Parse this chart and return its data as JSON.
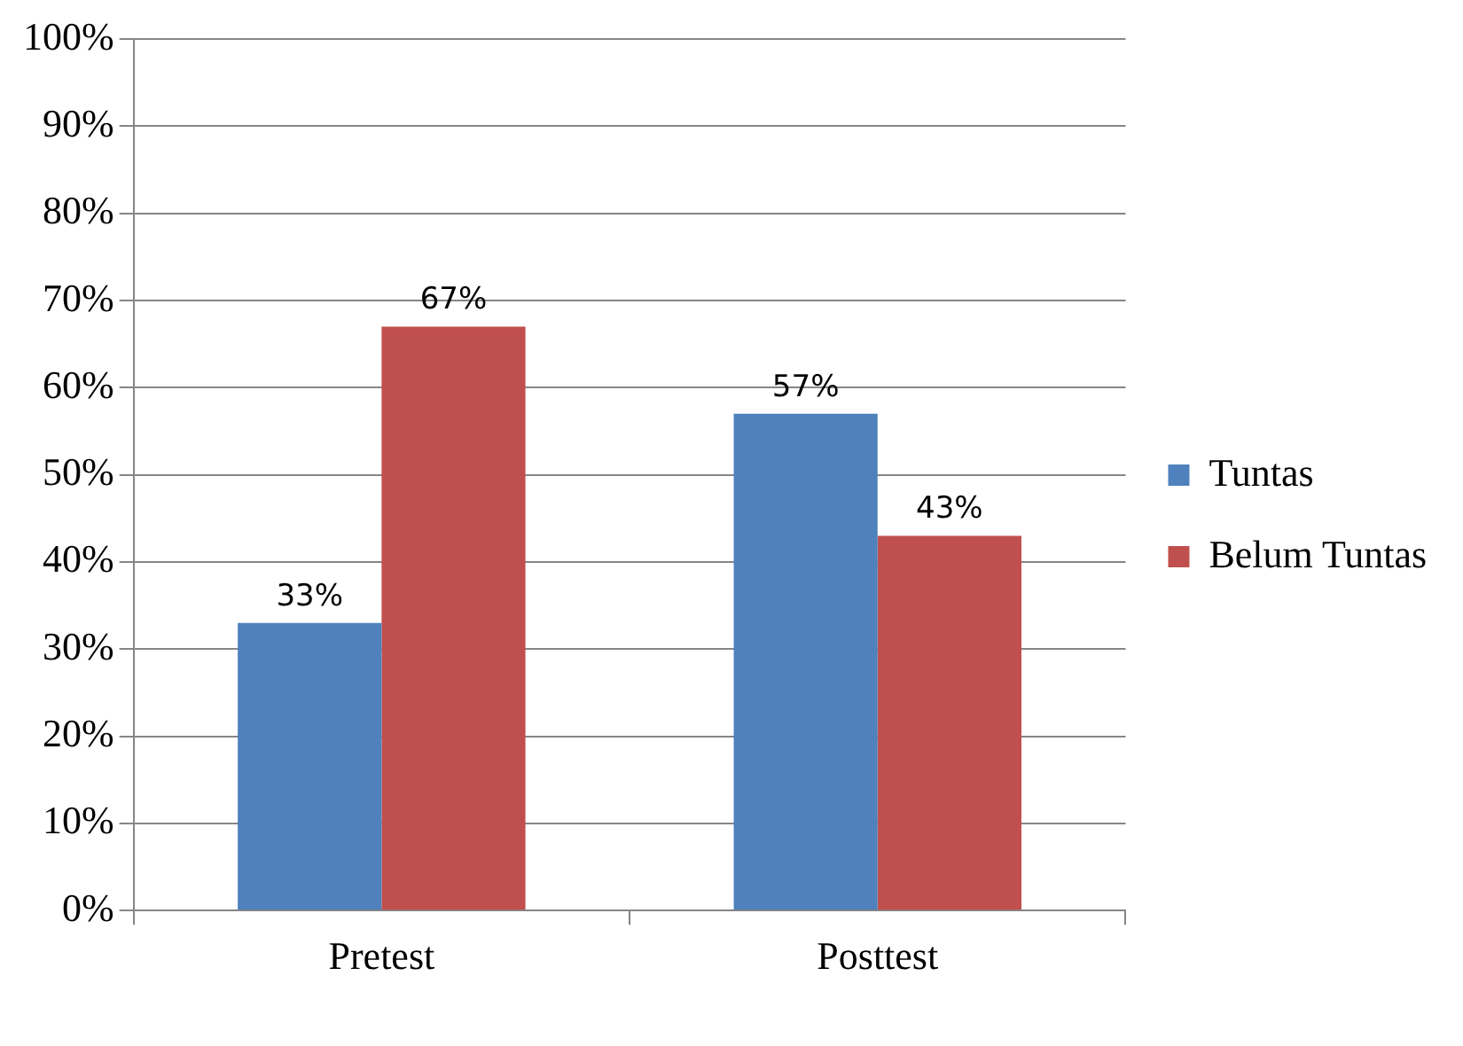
{
  "chart_data": {
    "type": "bar",
    "categories": [
      "Pretest",
      "Posttest"
    ],
    "series": [
      {
        "name": "Tuntas",
        "color": "#4f81bd",
        "values": [
          33,
          57
        ],
        "value_labels": [
          "33%",
          "57%"
        ]
      },
      {
        "name": "Belum Tuntas",
        "color": "#c0504d",
        "values": [
          67,
          43
        ],
        "value_labels": [
          "67%",
          "43%"
        ]
      }
    ],
    "ylim": [
      0,
      100
    ],
    "yticks": [
      {
        "value": 0,
        "label": "0%"
      },
      {
        "value": 10,
        "label": "10%"
      },
      {
        "value": 20,
        "label": "20%"
      },
      {
        "value": 30,
        "label": "30%"
      },
      {
        "value": 40,
        "label": "40%"
      },
      {
        "value": 50,
        "label": "50%"
      },
      {
        "value": 60,
        "label": "60%"
      },
      {
        "value": 70,
        "label": "70%"
      },
      {
        "value": 80,
        "label": "80%"
      },
      {
        "value": 90,
        "label": "90%"
      },
      {
        "value": 100,
        "label": "100%"
      }
    ],
    "grid": "y",
    "legend": "right"
  }
}
